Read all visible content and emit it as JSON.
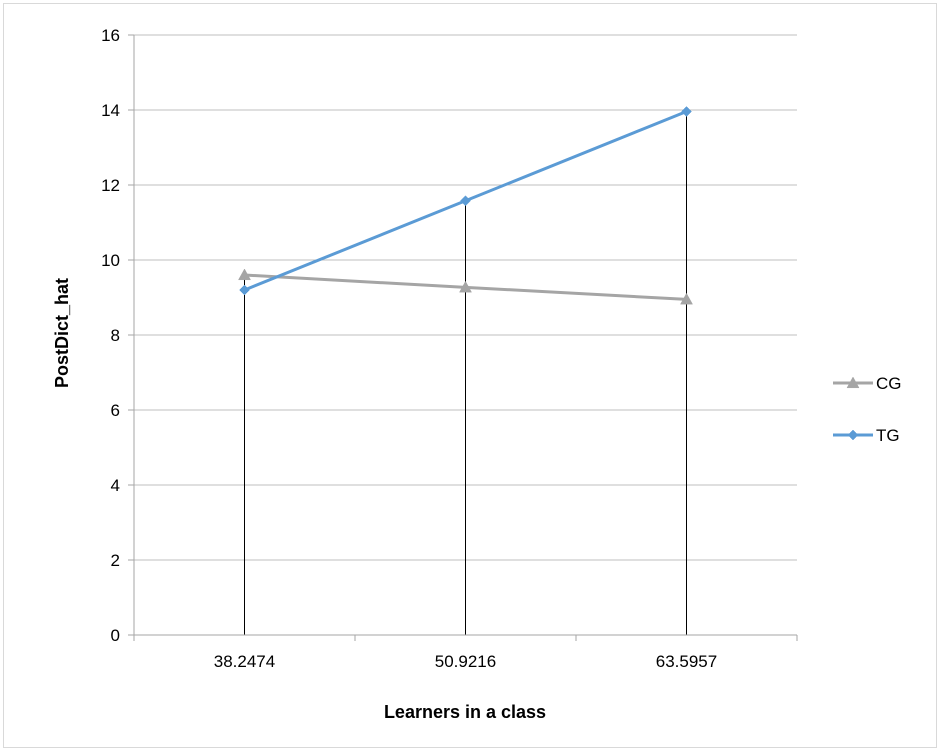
{
  "chart_data": {
    "type": "line",
    "title": "",
    "xlabel": "Learners in a class",
    "ylabel": "PostDict_hat",
    "categories": [
      "38.2474",
      "50.9216",
      "63.5957"
    ],
    "ylim": [
      0,
      16
    ],
    "yticks": [
      0,
      2,
      4,
      6,
      8,
      10,
      12,
      14,
      16
    ],
    "ytick_labels": [
      "0",
      "2",
      "4",
      "6",
      "8",
      "10",
      "12",
      "14",
      "16"
    ],
    "grid": true,
    "legend_position": "right",
    "series": [
      {
        "name": "CG",
        "values": [
          9.6,
          9.27,
          8.95
        ],
        "color": "#a5a5a5",
        "marker": "triangle"
      },
      {
        "name": "TG",
        "values": [
          9.2,
          11.58,
          13.96
        ],
        "color": "#5b9bd5",
        "marker": "diamond"
      }
    ],
    "drop_lines": true
  }
}
